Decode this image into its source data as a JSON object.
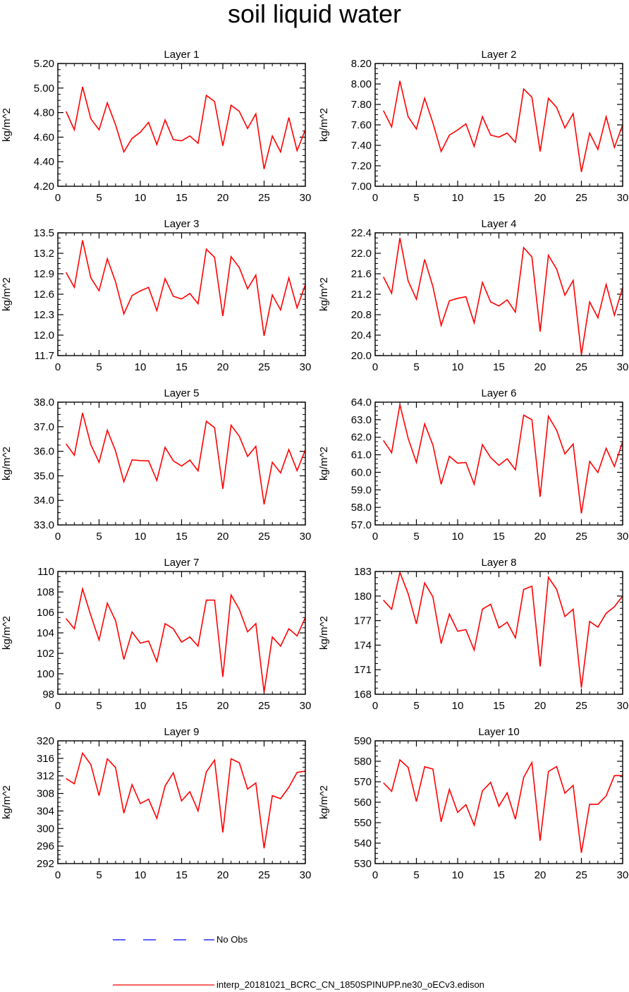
{
  "title": "soil liquid water",
  "legend": {
    "obs_label": "No Obs",
    "model_label": "interp_20181021_BCRC_CN_1850SPINUPP.ne30_oECv3.edison",
    "obs_color": "#0000ff",
    "model_color": "#ff0000"
  },
  "chart_data": [
    {
      "type": "line",
      "title": "Layer 1",
      "ylabel": "kg/m^2",
      "xlim": [
        0,
        30
      ],
      "ylim": [
        4.2,
        5.2
      ],
      "xticks": [
        0,
        5,
        10,
        15,
        20,
        25,
        30
      ],
      "yticks": [
        4.2,
        4.4,
        4.6,
        4.8,
        5.0,
        5.2
      ],
      "ytick_labels": [
        "4.20",
        "4.40",
        "4.60",
        "4.80",
        "5.00",
        "5.20"
      ],
      "series": [
        {
          "color": "#ff0000",
          "x": [
            1,
            2,
            3,
            4,
            5,
            6,
            7,
            8,
            9,
            10,
            11,
            12,
            13,
            14,
            15,
            16,
            17,
            18,
            19,
            20,
            21,
            22,
            23,
            24,
            25,
            26,
            27,
            28,
            29,
            30
          ],
          "values": [
            4.81,
            4.66,
            5.01,
            4.75,
            4.66,
            4.88,
            4.7,
            4.48,
            4.59,
            4.64,
            4.72,
            4.54,
            4.74,
            4.58,
            4.57,
            4.61,
            4.55,
            4.94,
            4.89,
            4.53,
            4.86,
            4.81,
            4.67,
            4.79,
            4.34,
            4.61,
            4.48,
            4.76,
            4.49,
            4.66
          ]
        }
      ]
    },
    {
      "type": "line",
      "title": "Layer 2",
      "ylabel": "kg/m^2",
      "xlim": [
        0,
        30
      ],
      "ylim": [
        7.0,
        8.2
      ],
      "xticks": [
        0,
        5,
        10,
        15,
        20,
        25,
        30
      ],
      "yticks": [
        7.0,
        7.2,
        7.4,
        7.6,
        7.8,
        8.0,
        8.2
      ],
      "ytick_labels": [
        "7.00",
        "7.20",
        "7.40",
        "7.60",
        "7.80",
        "8.00",
        "8.20"
      ],
      "series": [
        {
          "color": "#ff0000",
          "x": [
            1,
            2,
            3,
            4,
            5,
            6,
            7,
            8,
            9,
            10,
            11,
            12,
            13,
            14,
            15,
            16,
            17,
            18,
            19,
            20,
            21,
            22,
            23,
            24,
            25,
            26,
            27,
            28,
            29,
            30
          ],
          "values": [
            7.74,
            7.58,
            8.03,
            7.68,
            7.56,
            7.86,
            7.62,
            7.34,
            7.5,
            7.55,
            7.61,
            7.39,
            7.68,
            7.5,
            7.48,
            7.52,
            7.43,
            7.95,
            7.87,
            7.34,
            7.86,
            7.77,
            7.57,
            7.71,
            7.14,
            7.52,
            7.36,
            7.68,
            7.38,
            7.6
          ]
        }
      ]
    },
    {
      "type": "line",
      "title": "Layer 3",
      "ylabel": "kg/m^2",
      "xlim": [
        0,
        30
      ],
      "ylim": [
        11.7,
        13.5
      ],
      "xticks": [
        0,
        5,
        10,
        15,
        20,
        25,
        30
      ],
      "yticks": [
        11.7,
        12.0,
        12.3,
        12.6,
        12.9,
        13.2,
        13.5
      ],
      "ytick_labels": [
        "11.7",
        "12.0",
        "12.3",
        "12.6",
        "12.9",
        "13.2",
        "13.5"
      ],
      "series": [
        {
          "color": "#ff0000",
          "x": [
            1,
            2,
            3,
            4,
            5,
            6,
            7,
            8,
            9,
            10,
            11,
            12,
            13,
            14,
            15,
            16,
            17,
            18,
            19,
            20,
            21,
            22,
            23,
            24,
            25,
            26,
            27,
            28,
            29,
            30
          ],
          "values": [
            12.92,
            12.7,
            13.39,
            12.84,
            12.65,
            13.12,
            12.78,
            12.31,
            12.58,
            12.65,
            12.7,
            12.36,
            12.83,
            12.57,
            12.53,
            12.61,
            12.46,
            13.26,
            13.14,
            12.28,
            13.15,
            12.99,
            12.68,
            12.88,
            11.99,
            12.59,
            12.37,
            12.84,
            12.4,
            12.74
          ]
        }
      ]
    },
    {
      "type": "line",
      "title": "Layer 4",
      "ylabel": "kg/m^2",
      "xlim": [
        0,
        30
      ],
      "ylim": [
        20.0,
        22.4
      ],
      "xticks": [
        0,
        5,
        10,
        15,
        20,
        25,
        30
      ],
      "yticks": [
        20.0,
        20.4,
        20.8,
        21.2,
        21.6,
        22.0,
        22.4
      ],
      "ytick_labels": [
        "20.0",
        "20.4",
        "20.8",
        "21.2",
        "21.6",
        "22.0",
        "22.4"
      ],
      "series": [
        {
          "color": "#ff0000",
          "x": [
            1,
            2,
            3,
            4,
            5,
            6,
            7,
            8,
            9,
            10,
            11,
            12,
            13,
            14,
            15,
            16,
            17,
            18,
            19,
            20,
            21,
            22,
            23,
            24,
            25,
            26,
            27,
            28,
            29,
            30
          ],
          "values": [
            21.54,
            21.22,
            22.3,
            21.46,
            21.1,
            21.88,
            21.35,
            20.59,
            21.07,
            21.12,
            21.15,
            20.64,
            21.43,
            21.05,
            20.97,
            21.09,
            20.85,
            22.11,
            21.93,
            20.47,
            21.96,
            21.69,
            21.18,
            21.47,
            20.02,
            21.05,
            20.74,
            21.39,
            20.79,
            21.33
          ]
        }
      ]
    },
    {
      "type": "line",
      "title": "Layer 5",
      "ylabel": "kg/m^2",
      "xlim": [
        0,
        30
      ],
      "ylim": [
        33.0,
        38.0
      ],
      "xticks": [
        0,
        5,
        10,
        15,
        20,
        25,
        30
      ],
      "yticks": [
        33,
        34,
        35,
        36,
        37,
        38
      ],
      "ytick_labels": [
        "33.0",
        "34.0",
        "35.0",
        "36.0",
        "37.0",
        "38.0"
      ],
      "series": [
        {
          "color": "#ff0000",
          "x": [
            1,
            2,
            3,
            4,
            5,
            6,
            7,
            8,
            9,
            10,
            11,
            12,
            13,
            14,
            15,
            16,
            17,
            18,
            19,
            20,
            21,
            22,
            23,
            24,
            25,
            26,
            27,
            28,
            29,
            30
          ],
          "values": [
            36.3,
            35.84,
            37.56,
            36.27,
            35.55,
            36.86,
            36.01,
            34.76,
            35.65,
            35.62,
            35.61,
            34.81,
            36.16,
            35.61,
            35.4,
            35.64,
            35.2,
            37.22,
            36.96,
            34.47,
            37.06,
            36.61,
            35.79,
            36.2,
            33.84,
            35.55,
            35.12,
            36.07,
            35.21,
            36.06
          ]
        }
      ]
    },
    {
      "type": "line",
      "title": "Layer 6",
      "ylabel": "kg/m^2",
      "xlim": [
        0,
        30
      ],
      "ylim": [
        57.0,
        64.0
      ],
      "xticks": [
        0,
        5,
        10,
        15,
        20,
        25,
        30
      ],
      "yticks": [
        57,
        58,
        59,
        60,
        61,
        62,
        63,
        64
      ],
      "ytick_labels": [
        "57.0",
        "58.0",
        "59.0",
        "60.0",
        "61.0",
        "62.0",
        "63.0",
        "64.0"
      ],
      "series": [
        {
          "color": "#ff0000",
          "x": [
            1,
            2,
            3,
            4,
            5,
            6,
            7,
            8,
            9,
            10,
            11,
            12,
            13,
            14,
            15,
            16,
            17,
            18,
            19,
            20,
            21,
            22,
            23,
            24,
            25,
            26,
            27,
            28,
            29,
            30
          ],
          "values": [
            61.82,
            61.12,
            63.86,
            61.94,
            60.56,
            62.76,
            61.56,
            59.32,
            60.92,
            60.52,
            60.56,
            59.32,
            61.58,
            60.84,
            60.4,
            60.77,
            60.14,
            63.26,
            63.0,
            58.61,
            63.2,
            62.4,
            61.05,
            61.62,
            57.66,
            60.62,
            59.99,
            61.37,
            60.33,
            61.75
          ]
        }
      ]
    },
    {
      "type": "line",
      "title": "Layer 7",
      "ylabel": "kg/m^2",
      "xlim": [
        0,
        30
      ],
      "ylim": [
        98,
        110
      ],
      "xticks": [
        0,
        5,
        10,
        15,
        20,
        25,
        30
      ],
      "yticks": [
        98,
        100,
        102,
        104,
        106,
        108,
        110
      ],
      "ytick_labels": [
        "98",
        "100",
        "102",
        "104",
        "106",
        "108",
        "110"
      ],
      "series": [
        {
          "color": "#ff0000",
          "x": [
            1,
            2,
            3,
            4,
            5,
            6,
            7,
            8,
            9,
            10,
            11,
            12,
            13,
            14,
            15,
            16,
            17,
            18,
            19,
            20,
            21,
            22,
            23,
            24,
            25,
            26,
            27,
            28,
            29,
            30
          ],
          "values": [
            105.4,
            104.4,
            108.3,
            105.7,
            103.3,
            106.9,
            105.2,
            101.4,
            104.1,
            103.0,
            103.2,
            101.2,
            104.9,
            104.4,
            103.1,
            103.6,
            102.7,
            107.2,
            107.2,
            99.7,
            107.7,
            106.3,
            104.1,
            104.9,
            98.2,
            103.6,
            102.7,
            104.4,
            103.7,
            105.5
          ]
        }
      ]
    },
    {
      "type": "line",
      "title": "Layer 8",
      "ylabel": "kg/m^2",
      "xlim": [
        0,
        30
      ],
      "ylim": [
        168,
        183
      ],
      "xticks": [
        0,
        5,
        10,
        15,
        20,
        25,
        30
      ],
      "yticks": [
        168,
        171,
        174,
        177,
        180,
        183
      ],
      "ytick_labels": [
        "168",
        "171",
        "174",
        "177",
        "180",
        "183"
      ],
      "series": [
        {
          "color": "#ff0000",
          "x": [
            1,
            2,
            3,
            4,
            5,
            6,
            7,
            8,
            9,
            10,
            11,
            12,
            13,
            14,
            15,
            16,
            17,
            18,
            19,
            20,
            21,
            22,
            23,
            24,
            25,
            26,
            27,
            28,
            29,
            30
          ],
          "values": [
            179.5,
            178.4,
            182.9,
            180.3,
            176.6,
            181.6,
            179.9,
            174.2,
            177.8,
            175.7,
            175.9,
            173.4,
            178.4,
            179.0,
            176.1,
            176.8,
            174.9,
            180.8,
            181.2,
            171.4,
            182.3,
            180.8,
            177.5,
            178.4,
            168.8,
            176.9,
            176.2,
            177.9,
            178.7,
            180.0
          ]
        }
      ]
    },
    {
      "type": "line",
      "title": "Layer 9",
      "ylabel": "kg/m^2",
      "xlim": [
        0,
        30
      ],
      "ylim": [
        292,
        320
      ],
      "xticks": [
        0,
        5,
        10,
        15,
        20,
        25,
        30
      ],
      "yticks": [
        292,
        296,
        300,
        304,
        308,
        312,
        316,
        320
      ],
      "ytick_labels": [
        "292",
        "296",
        "300",
        "304",
        "308",
        "312",
        "316",
        "320"
      ],
      "series": [
        {
          "color": "#ff0000",
          "x": [
            1,
            2,
            3,
            4,
            5,
            6,
            7,
            8,
            9,
            10,
            11,
            12,
            13,
            14,
            15,
            16,
            17,
            18,
            19,
            20,
            21,
            22,
            23,
            24,
            25,
            26,
            27,
            28,
            29,
            30
          ],
          "values": [
            311.4,
            310.2,
            317.2,
            314.6,
            307.5,
            315.9,
            313.9,
            303.5,
            310.0,
            305.7,
            306.7,
            302.3,
            309.7,
            312.7,
            306.3,
            308.4,
            304.0,
            312.9,
            315.6,
            299.1,
            315.9,
            315.0,
            309.0,
            310.4,
            295.5,
            307.5,
            306.8,
            309.4,
            312.8,
            313.1
          ]
        }
      ]
    },
    {
      "type": "line",
      "title": "Layer 10",
      "ylabel": "kg/m^2",
      "xlim": [
        0,
        30
      ],
      "ylim": [
        530,
        590
      ],
      "xticks": [
        0,
        5,
        10,
        15,
        20,
        25,
        30
      ],
      "yticks": [
        530,
        540,
        550,
        560,
        570,
        580,
        590
      ],
      "ytick_labels": [
        "530",
        "540",
        "550",
        "560",
        "570",
        "580",
        "590"
      ],
      "series": [
        {
          "color": "#ff0000",
          "x": [
            1,
            2,
            3,
            4,
            5,
            6,
            7,
            8,
            9,
            10,
            11,
            12,
            13,
            14,
            15,
            16,
            17,
            18,
            19,
            20,
            21,
            22,
            23,
            24,
            25,
            26,
            27,
            28,
            29,
            30
          ],
          "values": [
            569.5,
            565.3,
            580.7,
            577.0,
            560.3,
            577.3,
            576.2,
            550.4,
            566.3,
            555.0,
            558.8,
            548.8,
            565.5,
            569.7,
            558.0,
            564.6,
            551.7,
            572.1,
            579.4,
            541.2,
            575.0,
            577.4,
            564.4,
            568.2,
            535.3,
            559.0,
            559.0,
            563.1,
            573.0,
            573.0
          ]
        }
      ]
    }
  ]
}
